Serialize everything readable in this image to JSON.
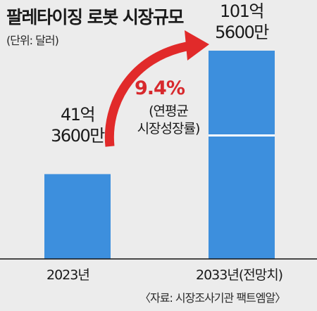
{
  "chart_data": {
    "type": "bar",
    "title": "팔레타이징 로봇 시장규모",
    "unit_label": "(단위: 달러)",
    "categories": [
      "2023년",
      "2033년(전망치)"
    ],
    "values": [
      4136000000,
      10156000000
    ],
    "value_labels": [
      [
        "41억",
        "3600만"
      ],
      [
        "101억",
        "5600만"
      ]
    ],
    "growth": {
      "value": "9.4%",
      "caption": [
        "(연평균",
        "시장성장률)"
      ]
    },
    "source": "〈자료: 시장조사기관 팩트엠알〉",
    "colors": {
      "bar": "#3d8fdd",
      "bar_divider": "#ffffff",
      "arrow": "#e12a2a",
      "growth_text": "#d7292d",
      "background": "#ececec"
    }
  }
}
